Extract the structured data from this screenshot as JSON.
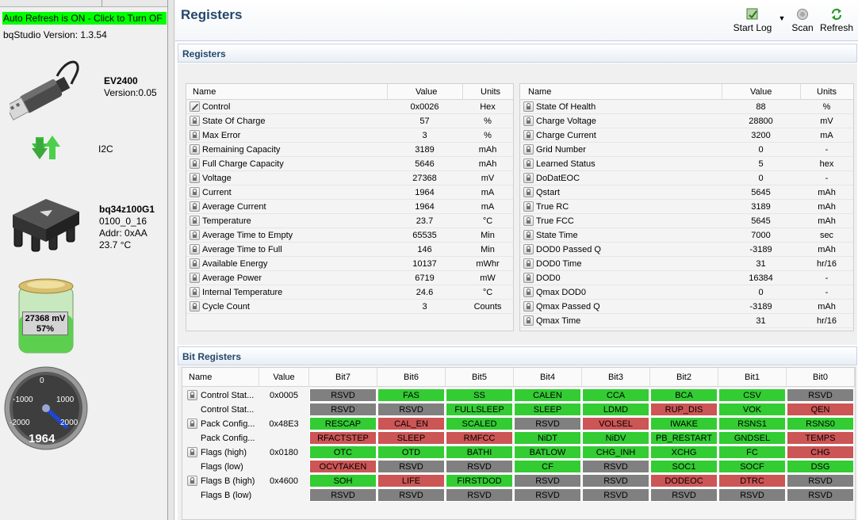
{
  "left": {
    "auto_refresh": "Auto Refresh is ON - Click to Turn OF",
    "version": "bqStudio Version:  1.3.54",
    "adapter": {
      "name": "EV2400",
      "version": "Version:0.05",
      "icon": "usb-icon"
    },
    "bus": {
      "label": "I2C",
      "icon": "transfer-arrows-icon"
    },
    "device": {
      "name": "bq34z100G1",
      "fw": "0100_0_16",
      "addr": "Addr: 0xAA",
      "temp": "23.7 °C",
      "icon": "chip-icon"
    },
    "battery": {
      "voltage": "27368 mV",
      "soc": "57%",
      "level": 0.57,
      "icon": "battery-icon"
    },
    "gauge": {
      "value": "1964",
      "ticks": [
        "-2000",
        "-1000",
        "0",
        "1000",
        "2000"
      ],
      "min": -2000,
      "max": 2000,
      "reading": 1964,
      "icon": "current-gauge-icon"
    }
  },
  "header": {
    "title": "Registers",
    "tools": [
      {
        "label": "Start Log",
        "icon": "start-log-icon"
      },
      {
        "label": "Scan",
        "icon": "scan-icon"
      },
      {
        "label": "Refresh",
        "icon": "refresh-icon"
      }
    ]
  },
  "sections": {
    "registers": "Registers",
    "bit_registers": "Bit Registers"
  },
  "reg_headers": {
    "name": "Name",
    "value": "Value",
    "units": "Units"
  },
  "registers_left": [
    {
      "name": "Control",
      "value": "0x0026",
      "units": "Hex",
      "editable": true
    },
    {
      "name": "State Of Charge",
      "value": "57",
      "units": "%"
    },
    {
      "name": "Max Error",
      "value": "3",
      "units": "%"
    },
    {
      "name": "Remaining Capacity",
      "value": "3189",
      "units": "mAh"
    },
    {
      "name": "Full Charge Capacity",
      "value": "5646",
      "units": "mAh"
    },
    {
      "name": "Voltage",
      "value": "27368",
      "units": "mV"
    },
    {
      "name": "Current",
      "value": "1964",
      "units": "mA"
    },
    {
      "name": "Average Current",
      "value": "1964",
      "units": "mA"
    },
    {
      "name": "Temperature",
      "value": "23.7",
      "units": "°C"
    },
    {
      "name": "Average Time to Empty",
      "value": "65535",
      "units": "Min"
    },
    {
      "name": "Average Time to Full",
      "value": "146",
      "units": "Min"
    },
    {
      "name": "Available Energy",
      "value": "10137",
      "units": "mWhr"
    },
    {
      "name": "Average Power",
      "value": "6719",
      "units": "mW"
    },
    {
      "name": "Internal Temperature",
      "value": "24.6",
      "units": "°C"
    },
    {
      "name": "Cycle Count",
      "value": "3",
      "units": "Counts"
    }
  ],
  "registers_right": [
    {
      "name": "State Of Health",
      "value": "88",
      "units": "%"
    },
    {
      "name": "Charge Voltage",
      "value": "28800",
      "units": "mV"
    },
    {
      "name": "Charge Current",
      "value": "3200",
      "units": "mA"
    },
    {
      "name": "Grid Number",
      "value": "0",
      "units": "-"
    },
    {
      "name": "Learned Status",
      "value": "5",
      "units": "hex"
    },
    {
      "name": "DoDatEOC",
      "value": "0",
      "units": "-"
    },
    {
      "name": "Qstart",
      "value": "5645",
      "units": "mAh"
    },
    {
      "name": "True RC",
      "value": "3189",
      "units": "mAh"
    },
    {
      "name": "True FCC",
      "value": "5645",
      "units": "mAh"
    },
    {
      "name": "State Time",
      "value": "7000",
      "units": "sec"
    },
    {
      "name": "DOD0 Passed Q",
      "value": "-3189",
      "units": "mAh"
    },
    {
      "name": "DOD0 Time",
      "value": "31",
      "units": "hr/16"
    },
    {
      "name": "DOD0",
      "value": "16384",
      "units": "-"
    },
    {
      "name": "Qmax DOD0",
      "value": "0",
      "units": "-"
    },
    {
      "name": "Qmax Passed Q",
      "value": "-3189",
      "units": "mAh"
    },
    {
      "name": "Qmax Time",
      "value": "31",
      "units": "hr/16"
    }
  ],
  "bit_headers": [
    "Name",
    "Value",
    "Bit7",
    "Bit6",
    "Bit5",
    "Bit4",
    "Bit3",
    "Bit2",
    "Bit1",
    "Bit0"
  ],
  "colors": {
    "on": "#33cc33",
    "off": "#808080",
    "warn": "#cc5555"
  },
  "bit_rows": [
    {
      "name": "Control Stat...",
      "value": "0x0005",
      "lock": true,
      "bits": [
        [
          "RSVD",
          "off"
        ],
        [
          "FAS",
          "on"
        ],
        [
          "SS",
          "on"
        ],
        [
          "CALEN",
          "on"
        ],
        [
          "CCA",
          "on"
        ],
        [
          "BCA",
          "on"
        ],
        [
          "CSV",
          "on"
        ],
        [
          "RSVD",
          "off"
        ]
      ]
    },
    {
      "name": "Control Stat...",
      "value": "",
      "lock": false,
      "bits": [
        [
          "RSVD",
          "off"
        ],
        [
          "RSVD",
          "off"
        ],
        [
          "FULLSLEEP",
          "on"
        ],
        [
          "SLEEP",
          "on"
        ],
        [
          "LDMD",
          "on"
        ],
        [
          "RUP_DIS",
          "warn"
        ],
        [
          "VOK",
          "on"
        ],
        [
          "QEN",
          "warn"
        ]
      ]
    },
    {
      "name": "Pack Config...",
      "value": "0x48E3",
      "lock": true,
      "bits": [
        [
          "RESCAP",
          "on"
        ],
        [
          "CAL_EN",
          "warn"
        ],
        [
          "SCALED",
          "on"
        ],
        [
          "RSVD",
          "off"
        ],
        [
          "VOLSEL",
          "warn"
        ],
        [
          "IWAKE",
          "on"
        ],
        [
          "RSNS1",
          "on"
        ],
        [
          "RSNS0",
          "on"
        ]
      ]
    },
    {
      "name": "Pack Config...",
      "value": "",
      "lock": false,
      "bits": [
        [
          "RFACTSTEP",
          "warn"
        ],
        [
          "SLEEP",
          "warn"
        ],
        [
          "RMFCC",
          "warn"
        ],
        [
          "NiDT",
          "on"
        ],
        [
          "NiDV",
          "on"
        ],
        [
          "PB_RESTART",
          "on"
        ],
        [
          "GNDSEL",
          "on"
        ],
        [
          "TEMPS",
          "warn"
        ]
      ]
    },
    {
      "name": "Flags (high)",
      "value": "0x0180",
      "lock": true,
      "bits": [
        [
          "OTC",
          "on"
        ],
        [
          "OTD",
          "on"
        ],
        [
          "BATHI",
          "on"
        ],
        [
          "BATLOW",
          "on"
        ],
        [
          "CHG_INH",
          "on"
        ],
        [
          "XCHG",
          "on"
        ],
        [
          "FC",
          "on"
        ],
        [
          "CHG",
          "warn"
        ]
      ]
    },
    {
      "name": "Flags (low)",
      "value": "",
      "lock": false,
      "bits": [
        [
          "OCVTAKEN",
          "warn"
        ],
        [
          "RSVD",
          "off"
        ],
        [
          "RSVD",
          "off"
        ],
        [
          "CF",
          "on"
        ],
        [
          "RSVD",
          "off"
        ],
        [
          "SOC1",
          "on"
        ],
        [
          "SOCF",
          "on"
        ],
        [
          "DSG",
          "on"
        ]
      ]
    },
    {
      "name": "Flags B (high)",
      "value": "0x4600",
      "lock": true,
      "bits": [
        [
          "SOH",
          "on"
        ],
        [
          "LIFE",
          "warn"
        ],
        [
          "FIRSTDOD",
          "on"
        ],
        [
          "RSVD",
          "off"
        ],
        [
          "RSVD",
          "off"
        ],
        [
          "DODEOC",
          "warn"
        ],
        [
          "DTRC",
          "warn"
        ],
        [
          "RSVD",
          "off"
        ]
      ]
    },
    {
      "name": "Flags B (low)",
      "value": "",
      "lock": false,
      "bits": [
        [
          "RSVD",
          "off"
        ],
        [
          "RSVD",
          "off"
        ],
        [
          "RSVD",
          "off"
        ],
        [
          "RSVD",
          "off"
        ],
        [
          "RSVD",
          "off"
        ],
        [
          "RSVD",
          "off"
        ],
        [
          "RSVD",
          "off"
        ],
        [
          "RSVD",
          "off"
        ]
      ]
    }
  ]
}
